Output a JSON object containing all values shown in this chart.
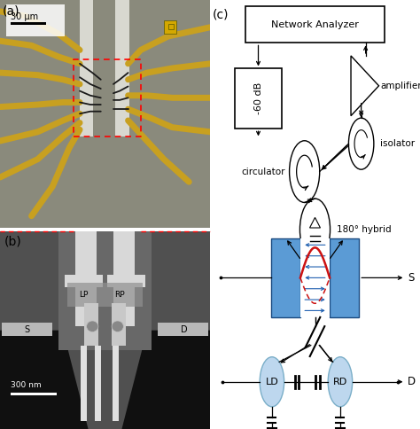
{
  "fig_width": 4.74,
  "fig_height": 4.84,
  "bg_color": "#ffffff",
  "panel_a_label": "(a)",
  "panel_b_label": "(b)",
  "panel_c_label": "(c)",
  "panel_a_scalebar": "30 μm",
  "panel_b_scalebar": "300 nm",
  "network_analyzer_label": "Network Analyzer",
  "attenuator_label": "-60 dB",
  "amplifiers_label": "amplifiers",
  "isolator_label": "isolator",
  "circulator_label": "circulator",
  "hybrid_label": "180° hybrid",
  "signal_label": "S",
  "drain_label": "D",
  "ld_label": "LD",
  "rd_label": "RD",
  "blue_rect_color": "#5b9bd5",
  "ld_rd_circle_color": "#bdd7ee",
  "ld_rd_edge_color": "#7aaec8",
  "blue_arrow_color": "#2060b0",
  "red_curve_color": "#cc1111",
  "red_dashed_color": "#cc1111",
  "micrograph_bg": "#8a8a7c",
  "sem_bg": "#3a3a3a",
  "gold_color": "#c8a020",
  "gold_color2": "#d4b030"
}
